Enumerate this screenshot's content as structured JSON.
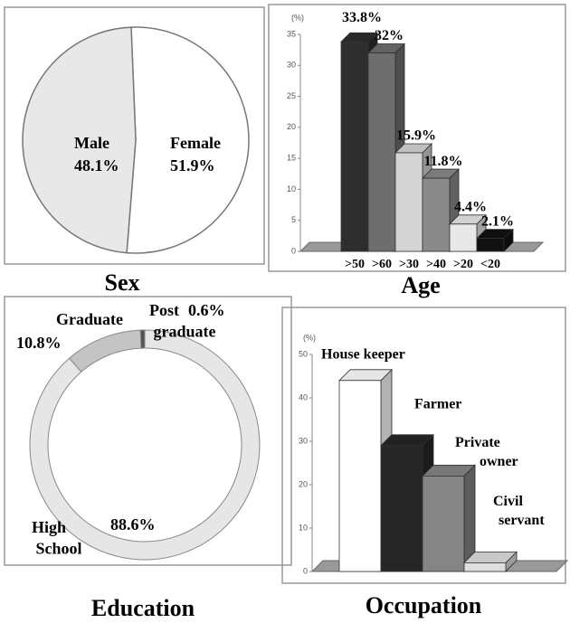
{
  "chart_data": [
    {
      "type": "pie",
      "title": "Sex",
      "categories": [
        "Male",
        "Female"
      ],
      "values": [
        48.1,
        51.9
      ],
      "value_labels": [
        "48.1%",
        "51.9%"
      ],
      "colors": [
        "#e8e8e8",
        "#ffffff"
      ]
    },
    {
      "type": "bar3d",
      "title": "Age",
      "y_label": "(%)",
      "categories": [
        ">50",
        ">60",
        ">30",
        ">40",
        ">20",
        "<20"
      ],
      "values": [
        33.8,
        32,
        15.9,
        11.8,
        4.4,
        2.1
      ],
      "value_labels": [
        "33.8%",
        "32%",
        "15.9%",
        "11.8%",
        "4.4%",
        "2.1%"
      ],
      "colors": [
        "#2e2e2e",
        "#6e6e6e",
        "#d4d4d4",
        "#8a8a8a",
        "#e8e8e8",
        "#111111"
      ],
      "ylim": [
        0,
        35
      ],
      "yticks": [
        0,
        5,
        10,
        15,
        20,
        25,
        30,
        35
      ]
    },
    {
      "type": "donut",
      "title": "Education",
      "categories": [
        "Graduate",
        "Post graduate",
        "High School"
      ],
      "values": [
        10.8,
        0.6,
        88.6
      ],
      "value_labels": [
        "10.8%",
        "0.6%",
        "88.6%"
      ],
      "colors": [
        "#c4c4c4",
        "#555555",
        "#e6e6e6"
      ]
    },
    {
      "type": "bar3d",
      "title": "Occupation",
      "y_label": "(%)",
      "categories": [
        "House keeper",
        "Farmer",
        "Private owner",
        "Civil servant"
      ],
      "values": [
        44,
        29,
        22,
        2
      ],
      "colors": [
        "#ffffff",
        "#262626",
        "#858585",
        "#dedede"
      ],
      "ylim": [
        0,
        50
      ],
      "yticks": [
        0,
        10,
        20,
        30,
        40,
        50
      ]
    }
  ]
}
